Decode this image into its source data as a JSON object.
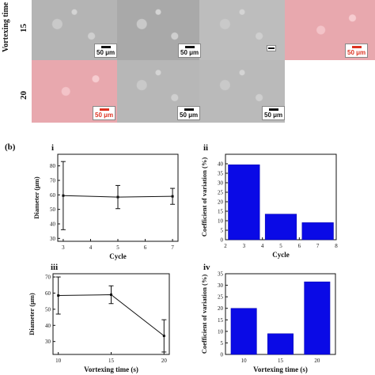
{
  "panel_a": {
    "row_axis_label": "Vortexing time (s)",
    "row_15_label": "15",
    "row_20_label": "20",
    "scale_bar_text": "50 μm"
  },
  "panel_b": {
    "label": "(b)",
    "sub_i": "i",
    "sub_ii": "ii",
    "sub_iii": "iii",
    "sub_iv": "iv"
  },
  "chart_data": [
    {
      "id": "i",
      "type": "line",
      "xlabel": "Cycle",
      "ylabel": "Diameter (μm)",
      "x": [
        3,
        5,
        7
      ],
      "y": [
        59.5,
        58.5,
        59
      ],
      "err": [
        23.5,
        8,
        5.5
      ],
      "xlim": [
        2.8,
        7.2
      ],
      "ylim": [
        28,
        88
      ],
      "xticks": [
        3,
        4,
        5,
        6,
        7
      ],
      "yticks": [
        30,
        40,
        50,
        60,
        70,
        80
      ]
    },
    {
      "id": "ii",
      "type": "bar",
      "xlabel": "Cycle",
      "ylabel": "Coefficient of variation (%)",
      "x": [
        3,
        5,
        7
      ],
      "values": [
        39.5,
        13.5,
        9
      ],
      "bar_width": 1.7,
      "xlim": [
        2,
        8
      ],
      "ylim": [
        0,
        45
      ],
      "xticks": [
        2,
        3,
        4,
        5,
        6,
        7,
        8
      ],
      "yticks": [
        0,
        5,
        10,
        15,
        20,
        25,
        30,
        35,
        40
      ],
      "color": "#0a0ae6"
    },
    {
      "id": "iii",
      "type": "line",
      "xlabel": "Vortexing time (s)",
      "ylabel": "Diameter (μm)",
      "x": [
        10,
        15,
        20
      ],
      "y": [
        58.5,
        59,
        33.5
      ],
      "err": [
        11.5,
        5.5,
        10
      ],
      "xlim": [
        9.5,
        20.5
      ],
      "ylim": [
        22,
        72
      ],
      "xticks": [
        10,
        15,
        20
      ],
      "yticks": [
        30,
        40,
        50,
        60,
        70
      ],
      "minor_yticks": [
        20,
        25,
        35,
        45,
        55,
        65
      ]
    },
    {
      "id": "iv",
      "type": "bar",
      "xlabel": "Vortexing time (s)",
      "ylabel": "Coefficient of variation (%)",
      "x": [
        10,
        15,
        20
      ],
      "values": [
        20,
        9,
        31.5
      ],
      "bar_width": 3.5,
      "xlim": [
        7.5,
        22.5
      ],
      "ylim": [
        0,
        35
      ],
      "xticks": [
        10,
        15,
        20
      ],
      "yticks": [
        0,
        5,
        10,
        15,
        20,
        25,
        30,
        35
      ],
      "color": "#0a0ae6"
    }
  ]
}
